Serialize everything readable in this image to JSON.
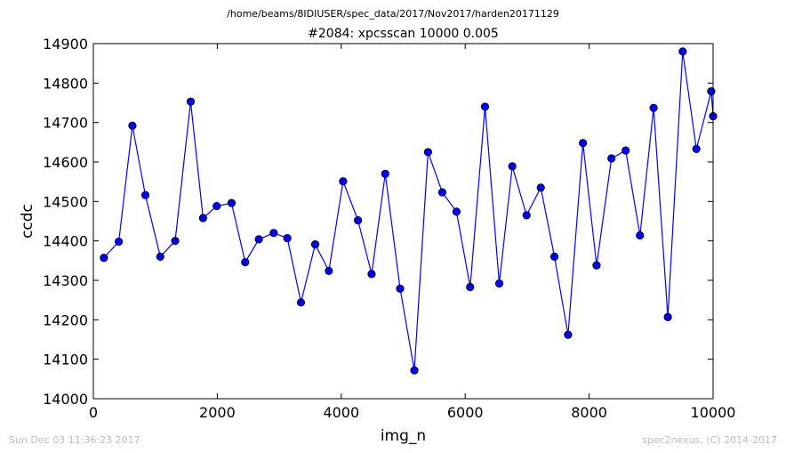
{
  "header": {
    "path": "/home/beams/8IDIUSER/spec_data/2017/Nov2017/harden20171129"
  },
  "footer": {
    "timestamp": "Sun Dec 03 11:36:23 2017",
    "credit": "spec2nexus, (C) 2014-2017"
  },
  "chart_data": {
    "type": "line",
    "title": "#2084: xpcsscan 10000 0.005",
    "xlabel": "img_n",
    "ylabel": "ccdc",
    "xlim": [
      0,
      10000
    ],
    "ylim": [
      14000,
      14900
    ],
    "xticks": [
      0,
      2000,
      4000,
      6000,
      8000,
      10000
    ],
    "yticks": [
      14000,
      14100,
      14200,
      14300,
      14400,
      14500,
      14600,
      14700,
      14800,
      14900
    ],
    "grid": false,
    "series_color": "#0000ff",
    "x": [
      170,
      410,
      630,
      840,
      1080,
      1320,
      1570,
      1770,
      1990,
      2230,
      2450,
      2670,
      2910,
      3130,
      3350,
      3580,
      3800,
      4030,
      4270,
      4490,
      4710,
      4950,
      5180,
      5400,
      5630,
      5860,
      6080,
      6320,
      6550,
      6760,
      6990,
      7220,
      7440,
      7660,
      7900,
      8120,
      8360,
      8590,
      8820,
      9040,
      9270,
      9510,
      9730,
      9970,
      10000
    ],
    "y": [
      14357,
      14398,
      14692,
      14516,
      14360,
      14400,
      14753,
      14458,
      14488,
      14496,
      14346,
      14404,
      14420,
      14407,
      14244,
      14391,
      14324,
      14551,
      14452,
      14316,
      14570,
      14279,
      14072,
      14625,
      14523,
      14474,
      14283,
      14740,
      14292,
      14589,
      14465,
      14535,
      14360,
      14162,
      14648,
      14338,
      14609,
      14629,
      14414,
      14737,
      14207,
      14880,
      14633,
      14779,
      14716
    ]
  }
}
